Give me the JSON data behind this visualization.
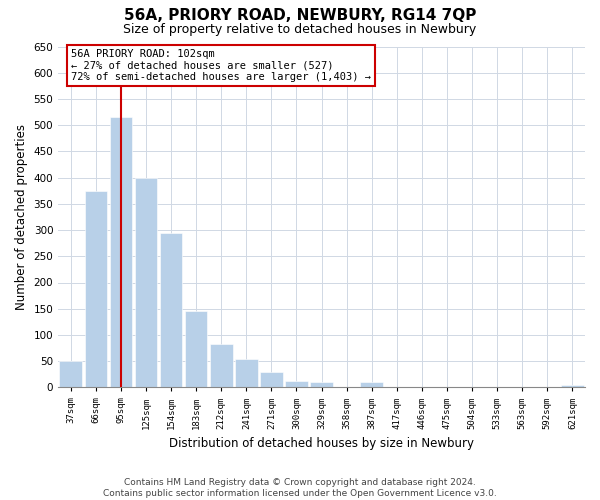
{
  "title": "56A, PRIORY ROAD, NEWBURY, RG14 7QP",
  "subtitle": "Size of property relative to detached houses in Newbury",
  "xlabel": "Distribution of detached houses by size in Newbury",
  "ylabel": "Number of detached properties",
  "categories": [
    "37sqm",
    "66sqm",
    "95sqm",
    "125sqm",
    "154sqm",
    "183sqm",
    "212sqm",
    "241sqm",
    "271sqm",
    "300sqm",
    "329sqm",
    "358sqm",
    "387sqm",
    "417sqm",
    "446sqm",
    "475sqm",
    "504sqm",
    "533sqm",
    "563sqm",
    "592sqm",
    "621sqm"
  ],
  "values": [
    50,
    375,
    515,
    400,
    295,
    145,
    82,
    55,
    30,
    13,
    10,
    0,
    10,
    0,
    0,
    0,
    0,
    0,
    0,
    0,
    5
  ],
  "bar_color": "#b8d0e8",
  "bar_edge_color": "#b8d0e8",
  "vline_x": 2,
  "vline_color": "#cc0000",
  "annotation_text": "56A PRIORY ROAD: 102sqm\n← 27% of detached houses are smaller (527)\n72% of semi-detached houses are larger (1,403) →",
  "annotation_box_color": "#ffffff",
  "annotation_box_edge": "#cc0000",
  "ylim": [
    0,
    650
  ],
  "yticks": [
    0,
    50,
    100,
    150,
    200,
    250,
    300,
    350,
    400,
    450,
    500,
    550,
    600,
    650
  ],
  "footnote": "Contains HM Land Registry data © Crown copyright and database right 2024.\nContains public sector information licensed under the Open Government Licence v3.0.",
  "bg_color": "#ffffff",
  "grid_color": "#d0d8e4",
  "title_fontsize": 11,
  "subtitle_fontsize": 9,
  "xlabel_fontsize": 8.5,
  "ylabel_fontsize": 8.5,
  "footnote_fontsize": 6.5
}
